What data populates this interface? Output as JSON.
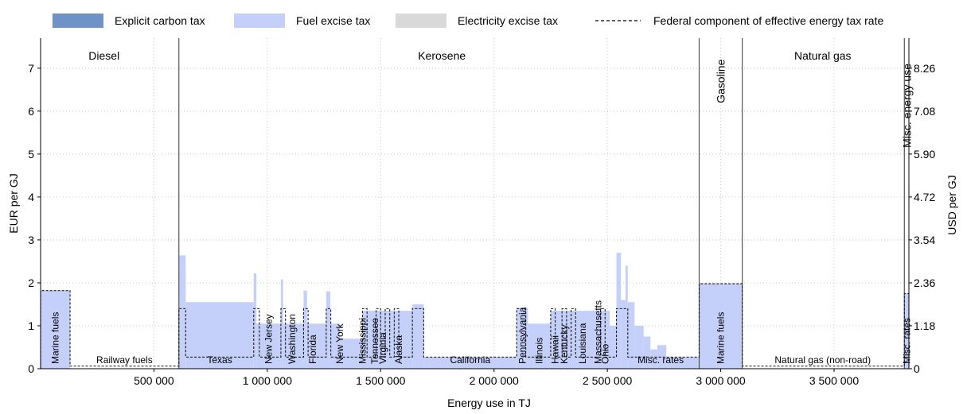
{
  "chart_data": {
    "type": "area",
    "xlabel": "Energy use in TJ",
    "ylabel": "EUR per GJ",
    "y2label": "USD per GJ",
    "xlim": [
      0,
      3830000
    ],
    "ylim": [
      0,
      7.7
    ],
    "x_ticks": [
      500000,
      1000000,
      1500000,
      2000000,
      2500000,
      3000000,
      3500000
    ],
    "x_tick_labels": [
      "500 000",
      "1 000 000",
      "1 500 000",
      "2 000 000",
      "2 500 000",
      "3 000 000",
      "3 500 000"
    ],
    "y_ticks": [
      0,
      1,
      2,
      3,
      4,
      5,
      6,
      7
    ],
    "y_tick_labels": [
      "0",
      "1",
      "2",
      "3",
      "4",
      "5",
      "6",
      "7"
    ],
    "y2_ticks": [
      0,
      1.18,
      2.36,
      3.54,
      4.72,
      5.9,
      7.08,
      8.26
    ],
    "y2_tick_labels": [
      "0",
      "1.18",
      "2.36",
      "3.54",
      "4.72",
      "5.90",
      "7.08",
      "8.26"
    ],
    "usd_per_eur": 1.18,
    "grid": true,
    "legend": {
      "position": "top",
      "entries": [
        {
          "label": "Explicit carbon tax",
          "kind": "patch",
          "color": "#6f93c6"
        },
        {
          "label": "Fuel excise tax",
          "kind": "patch",
          "color": "#c4d0f9"
        },
        {
          "label": "Electricity excise tax",
          "kind": "patch",
          "color": "#d9d9d9"
        },
        {
          "label": "Federal component of effective energy tax rate",
          "kind": "dashed-line",
          "color": "#000000"
        }
      ]
    },
    "fuel_excise_color": "#c4d0f9",
    "fuel_dividers": [
      610000,
      2905000,
      3095000,
      3810000
    ],
    "fuel_labels": [
      {
        "text": "Diesel",
        "x": 280000,
        "y": 7.2,
        "vertical": false
      },
      {
        "text": "Kerosene",
        "x": 1770000,
        "y": 7.2,
        "vertical": false
      },
      {
        "text": "Gasoline",
        "x": 3000000,
        "y": 7.3,
        "vertical": true
      },
      {
        "text": "Natural gas",
        "x": 3450000,
        "y": 7.2,
        "vertical": false
      },
      {
        "text": "Misc. energy use",
        "x": 3822000,
        "y": 7.2,
        "vertical": true
      }
    ],
    "series": [
      {
        "name": "Fuel excise tax",
        "steps": [
          {
            "x0": 0,
            "x1": 130000,
            "y": 1.82
          },
          {
            "x0": 130000,
            "y": 0,
            "x1": 610000
          },
          {
            "x0": 610000,
            "x1": 640000,
            "y": 2.64
          },
          {
            "x0": 640000,
            "x1": 940000,
            "y": 1.55
          },
          {
            "x0": 940000,
            "x1": 952000,
            "y": 2.22
          },
          {
            "x0": 952000,
            "x1": 1060000,
            "y": 1.05
          },
          {
            "x0": 1060000,
            "x1": 1070000,
            "y": 2.08
          },
          {
            "x0": 1070000,
            "x1": 1160000,
            "y": 1.05
          },
          {
            "x0": 1160000,
            "x1": 1175000,
            "y": 1.82
          },
          {
            "x0": 1175000,
            "x1": 1260000,
            "y": 1.05
          },
          {
            "x0": 1260000,
            "x1": 1278000,
            "y": 1.8
          },
          {
            "x0": 1278000,
            "x1": 1320000,
            "y": 1.05
          },
          {
            "x0": 1320000,
            "x1": 1420000,
            "y": 0.7
          },
          {
            "x0": 1420000,
            "x1": 1640000,
            "y": 1.35
          },
          {
            "x0": 1640000,
            "x1": 1690000,
            "y": 1.5
          },
          {
            "x0": 1690000,
            "x1": 2100000,
            "y": 0.27
          },
          {
            "x0": 2100000,
            "x1": 2150000,
            "y": 1.42
          },
          {
            "x0": 2150000,
            "x1": 2250000,
            "y": 1.05
          },
          {
            "x0": 2250000,
            "x1": 2510000,
            "y": 1.35
          },
          {
            "x0": 2510000,
            "x1": 2540000,
            "y": 1.0
          },
          {
            "x0": 2540000,
            "x1": 2560000,
            "y": 2.7
          },
          {
            "x0": 2560000,
            "x1": 2580000,
            "y": 1.6
          },
          {
            "x0": 2580000,
            "x1": 2590000,
            "y": 2.4
          },
          {
            "x0": 2590000,
            "x1": 2620000,
            "y": 1.55
          },
          {
            "x0": 2620000,
            "x1": 2660000,
            "y": 1.0
          },
          {
            "x0": 2660000,
            "x1": 2690000,
            "y": 0.75
          },
          {
            "x0": 2690000,
            "x1": 2720000,
            "y": 0.45
          },
          {
            "x0": 2720000,
            "x1": 2760000,
            "y": 0.55
          },
          {
            "x0": 2760000,
            "x1": 2905000,
            "y": 0.27
          },
          {
            "x0": 2905000,
            "x1": 3095000,
            "y": 1.98
          },
          {
            "x0": 3095000,
            "x1": 3810000,
            "y": 0
          },
          {
            "x0": 3810000,
            "x1": 3830000,
            "y": 1.75
          }
        ]
      },
      {
        "name": "Federal component of effective energy tax rate",
        "steps": [
          {
            "x0": 0,
            "x1": 130000,
            "y": 1.82
          },
          {
            "x0": 130000,
            "x1": 610000,
            "y": 0.06
          },
          {
            "x0": 610000,
            "x1": 640000,
            "y": 1.4
          },
          {
            "x0": 640000,
            "x1": 940000,
            "y": 0.27
          },
          {
            "x0": 940000,
            "x1": 965000,
            "y": 1.4
          },
          {
            "x0": 965000,
            "x1": 1060000,
            "y": 0.27
          },
          {
            "x0": 1060000,
            "x1": 1080000,
            "y": 1.4
          },
          {
            "x0": 1080000,
            "x1": 1160000,
            "y": 0.27
          },
          {
            "x0": 1160000,
            "x1": 1180000,
            "y": 1.4
          },
          {
            "x0": 1180000,
            "x1": 1260000,
            "y": 0.27
          },
          {
            "x0": 1260000,
            "x1": 1280000,
            "y": 1.4
          },
          {
            "x0": 1280000,
            "x1": 1420000,
            "y": 0.27
          },
          {
            "x0": 1420000,
            "x1": 1440000,
            "y": 1.4
          },
          {
            "x0": 1440000,
            "x1": 1480000,
            "y": 0.27
          },
          {
            "x0": 1480000,
            "x1": 1500000,
            "y": 1.4
          },
          {
            "x0": 1500000,
            "x1": 1520000,
            "y": 0.27
          },
          {
            "x0": 1520000,
            "x1": 1540000,
            "y": 1.4
          },
          {
            "x0": 1540000,
            "x1": 1560000,
            "y": 0.27
          },
          {
            "x0": 1560000,
            "x1": 1580000,
            "y": 1.4
          },
          {
            "x0": 1580000,
            "x1": 1640000,
            "y": 0.27
          },
          {
            "x0": 1640000,
            "x1": 1690000,
            "y": 1.4
          },
          {
            "x0": 1690000,
            "x1": 2100000,
            "y": 0.27
          },
          {
            "x0": 2100000,
            "x1": 2140000,
            "y": 1.4
          },
          {
            "x0": 2140000,
            "x1": 2250000,
            "y": 0.27
          },
          {
            "x0": 2250000,
            "x1": 2270000,
            "y": 1.4
          },
          {
            "x0": 2270000,
            "x1": 2300000,
            "y": 0.27
          },
          {
            "x0": 2300000,
            "x1": 2320000,
            "y": 1.4
          },
          {
            "x0": 2320000,
            "x1": 2340000,
            "y": 0.27
          },
          {
            "x0": 2340000,
            "x1": 2360000,
            "y": 1.4
          },
          {
            "x0": 2360000,
            "x1": 2470000,
            "y": 0.27
          },
          {
            "x0": 2470000,
            "x1": 2490000,
            "y": 1.4
          },
          {
            "x0": 2490000,
            "x1": 2540000,
            "y": 0.27
          },
          {
            "x0": 2540000,
            "x1": 2590000,
            "y": 1.4
          },
          {
            "x0": 2590000,
            "x1": 2905000,
            "y": 0.27
          },
          {
            "x0": 2905000,
            "x1": 3095000,
            "y": 1.98
          },
          {
            "x0": 3095000,
            "x1": 3810000,
            "y": 0.06
          },
          {
            "x0": 3810000,
            "x1": 3830000,
            "y": 1.75
          }
        ]
      }
    ],
    "annotations": [
      {
        "text": "Marine fuels",
        "x": 65000,
        "vertical": true
      },
      {
        "text": "Railway fuels",
        "x": 370000,
        "vertical": false
      },
      {
        "text": "Texas",
        "x": 790000,
        "vertical": false
      },
      {
        "text": "New Jersey",
        "x": 1005000,
        "vertical": true
      },
      {
        "text": "Washington",
        "x": 1110000,
        "vertical": true
      },
      {
        "text": "Florida",
        "x": 1200000,
        "vertical": true
      },
      {
        "text": "New York",
        "x": 1320000,
        "vertical": true
      },
      {
        "text": "Mississippi",
        "x": 1420000,
        "vertical": true
      },
      {
        "text": "Tennessee",
        "x": 1475000,
        "vertical": true
      },
      {
        "text": "Virginia",
        "x": 1510000,
        "vertical": true
      },
      {
        "text": "Alaska",
        "x": 1580000,
        "vertical": true
      },
      {
        "text": "California",
        "x": 1895000,
        "vertical": false
      },
      {
        "text": "Pennsylvania",
        "x": 2125000,
        "vertical": true
      },
      {
        "text": "Illinois",
        "x": 2200000,
        "vertical": true
      },
      {
        "text": "Hawaii",
        "x": 2270000,
        "vertical": true
      },
      {
        "text": "Kentucky",
        "x": 2310000,
        "vertical": true
      },
      {
        "text": "Louisiana",
        "x": 2390000,
        "vertical": true
      },
      {
        "text": "Massachusetts",
        "x": 2460000,
        "vertical": true
      },
      {
        "text": "Ohio",
        "x": 2490000,
        "vertical": true
      },
      {
        "text": "Misc. rates",
        "x": 2735000,
        "vertical": false
      },
      {
        "text": "Marine fuels",
        "x": 3000000,
        "vertical": true
      },
      {
        "text": "Natural gas (non-road)",
        "x": 3450000,
        "vertical": false
      },
      {
        "text": "Misc. rates",
        "x": 3822000,
        "vertical": true
      }
    ]
  }
}
